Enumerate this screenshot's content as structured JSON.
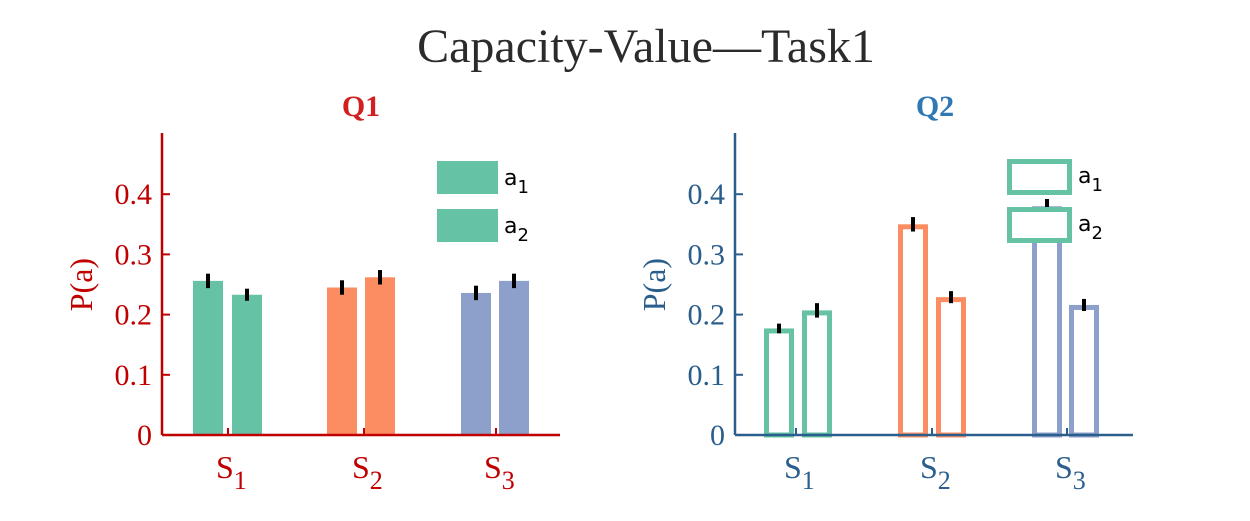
{
  "figure": {
    "title": "Capacity-Value—Task1"
  },
  "chart_data": [
    {
      "type": "bar",
      "style": "filled",
      "title": "Q1",
      "title_color": "#d21f1f",
      "axis_color": "#c00000",
      "ylabel": "P(a)",
      "ylim": [
        0,
        0.5
      ],
      "yticks": [
        0,
        0.1,
        0.2,
        0.3,
        0.4
      ],
      "ytick_labels": [
        "0",
        "0.1",
        "0.2",
        "0.3",
        "0.4"
      ],
      "categories": [
        {
          "base": "S",
          "sub": "1"
        },
        {
          "base": "S",
          "sub": "2"
        },
        {
          "base": "S",
          "sub": "3"
        }
      ],
      "group_colors": [
        "#66c2a5",
        "#fc8d62",
        "#8da0cb"
      ],
      "series": [
        {
          "name": "a1",
          "values": [
            0.256,
            0.245,
            0.236
          ],
          "errors": [
            0.012,
            0.012,
            0.012
          ]
        },
        {
          "name": "a2",
          "values": [
            0.233,
            0.262,
            0.256
          ],
          "errors": [
            0.01,
            0.012,
            0.012
          ]
        }
      ],
      "legend": {
        "placement": "top-right",
        "color": "#66c2a5",
        "entries": [
          {
            "base": "a",
            "sub": "1"
          },
          {
            "base": "a",
            "sub": "2"
          }
        ]
      }
    },
    {
      "type": "bar",
      "style": "outline",
      "title": "Q2",
      "title_color": "#2f78b4",
      "axis_color": "#2a5e8c",
      "ylabel": "P(a)",
      "ylim": [
        0,
        0.5
      ],
      "yticks": [
        0,
        0.1,
        0.2,
        0.3,
        0.4
      ],
      "ytick_labels": [
        "0",
        "0.1",
        "0.2",
        "0.3",
        "0.4"
      ],
      "categories": [
        {
          "base": "S",
          "sub": "1"
        },
        {
          "base": "S",
          "sub": "2"
        },
        {
          "base": "S",
          "sub": "3"
        }
      ],
      "group_colors": [
        "#66c2a5",
        "#fc8d62",
        "#8da0cb"
      ],
      "series": [
        {
          "name": "a1",
          "values": [
            0.177,
            0.35,
            0.38
          ],
          "errors": [
            0.008,
            0.012,
            0.012
          ]
        },
        {
          "name": "a2",
          "values": [
            0.207,
            0.229,
            0.216
          ],
          "errors": [
            0.012,
            0.01,
            0.01
          ]
        }
      ],
      "legend": {
        "placement": "top-right",
        "color": "#66c2a5",
        "entries": [
          {
            "base": "a",
            "sub": "1"
          },
          {
            "base": "a",
            "sub": "2"
          }
        ]
      }
    }
  ]
}
